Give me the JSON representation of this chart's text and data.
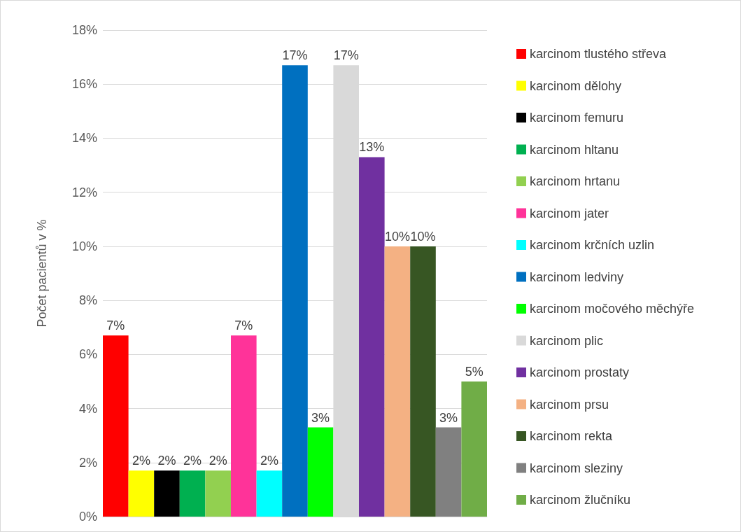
{
  "chart_data": {
    "type": "bar",
    "ylabel": "Počet pacientů v %",
    "categories": [
      null
    ],
    "series": [
      {
        "name": "karcinom tlustého střeva",
        "color": "#ff0000",
        "values": [
          6.7
        ],
        "value_labels": [
          "7%"
        ]
      },
      {
        "name": "karcinom dělohy",
        "color": "#ffff00",
        "values": [
          1.7
        ],
        "value_labels": [
          "2%"
        ]
      },
      {
        "name": "karcinom femuru",
        "color": "#000000",
        "values": [
          1.7
        ],
        "value_labels": [
          "2%"
        ]
      },
      {
        "name": "karcinom hltanu",
        "color": "#00b050",
        "values": [
          1.7
        ],
        "value_labels": [
          "2%"
        ]
      },
      {
        "name": "karcinom hrtanu",
        "color": "#92d050",
        "values": [
          1.7
        ],
        "value_labels": [
          "2%"
        ]
      },
      {
        "name": "karcinom jater",
        "color": "#ff3399",
        "values": [
          6.7
        ],
        "value_labels": [
          "7%"
        ]
      },
      {
        "name": "karcinom krčních uzlin",
        "color": "#00ffff",
        "values": [
          1.7
        ],
        "value_labels": [
          "2%"
        ]
      },
      {
        "name": "karcinom ledviny",
        "color": "#0070c0",
        "values": [
          16.7
        ],
        "value_labels": [
          "17%"
        ]
      },
      {
        "name": "karcinom močového měchýře",
        "color": "#00ff00",
        "values": [
          3.3
        ],
        "value_labels": [
          "3%"
        ]
      },
      {
        "name": "karcinom plic",
        "color": "#d9d9d9",
        "values": [
          16.7
        ],
        "value_labels": [
          "17%"
        ]
      },
      {
        "name": "karcinom prostaty",
        "color": "#7030a0",
        "values": [
          13.3
        ],
        "value_labels": [
          "13%"
        ]
      },
      {
        "name": "karcinom prsu",
        "color": "#f4b183",
        "values": [
          10
        ],
        "value_labels": [
          "10%"
        ]
      },
      {
        "name": "karcinom rekta",
        "color": "#375623",
        "values": [
          10
        ],
        "value_labels": [
          "10%"
        ]
      },
      {
        "name": "karcinom sleziny",
        "color": "#808080",
        "values": [
          3.3
        ],
        "value_labels": [
          "3%"
        ]
      },
      {
        "name": "karcinom žlučníku",
        "color": "#70ad47",
        "values": [
          5
        ],
        "value_labels": [
          "5%"
        ]
      }
    ],
    "ylim": [
      0,
      18
    ],
    "yticks": [
      {
        "value": 0,
        "label": "0%"
      },
      {
        "value": 2,
        "label": "2%"
      },
      {
        "value": 4,
        "label": "4%"
      },
      {
        "value": 6,
        "label": "6%"
      },
      {
        "value": 8,
        "label": "8%"
      },
      {
        "value": 10,
        "label": "10%"
      },
      {
        "value": 12,
        "label": "12%"
      },
      {
        "value": 14,
        "label": "14%"
      },
      {
        "value": 16,
        "label": "16%"
      },
      {
        "value": 18,
        "label": "18%"
      }
    ],
    "grid": "y",
    "legend": "right"
  }
}
